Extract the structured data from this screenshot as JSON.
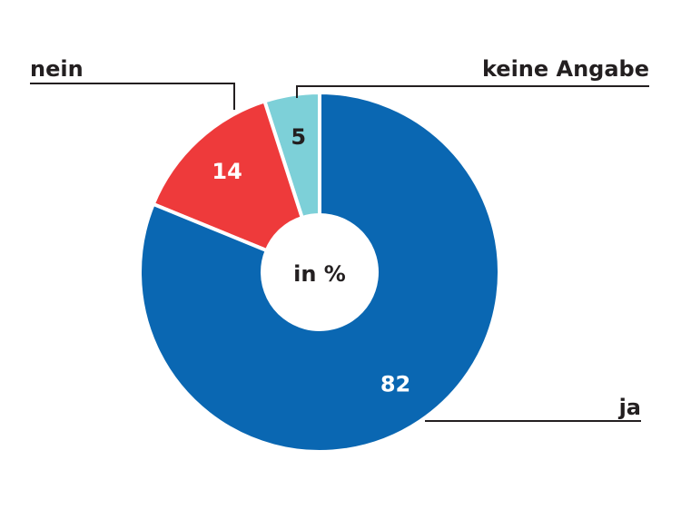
{
  "chart_data": {
    "type": "donut",
    "center_label": "in %",
    "categories": [
      "ja",
      "nein",
      "keine Angabe"
    ],
    "values": [
      82,
      14,
      5
    ],
    "colors": [
      "#0a67b2",
      "#ee3a3b",
      "#7dd0d8"
    ]
  }
}
